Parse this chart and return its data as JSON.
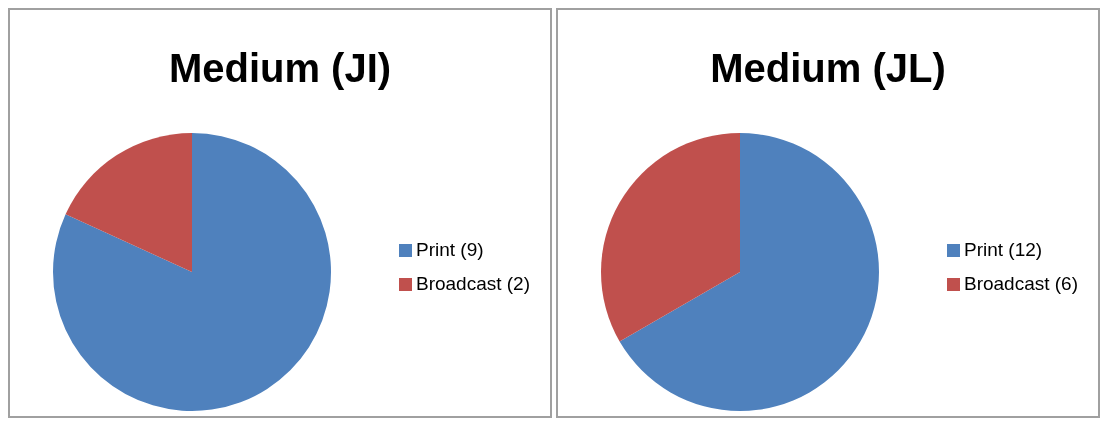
{
  "chart_data": [
    {
      "type": "pie",
      "title": "Medium (JI)",
      "categories": [
        "Print (9)",
        "Broadcast (2)"
      ],
      "values": [
        9,
        2
      ],
      "colors": [
        "#4f81bd",
        "#c0504d"
      ],
      "legend": "right"
    },
    {
      "type": "pie",
      "title": "Medium (JL)",
      "categories": [
        "Print (12)",
        "Broadcast (6)"
      ],
      "values": [
        12,
        6
      ],
      "colors": [
        "#4f81bd",
        "#c0504d"
      ],
      "legend": "right"
    }
  ]
}
